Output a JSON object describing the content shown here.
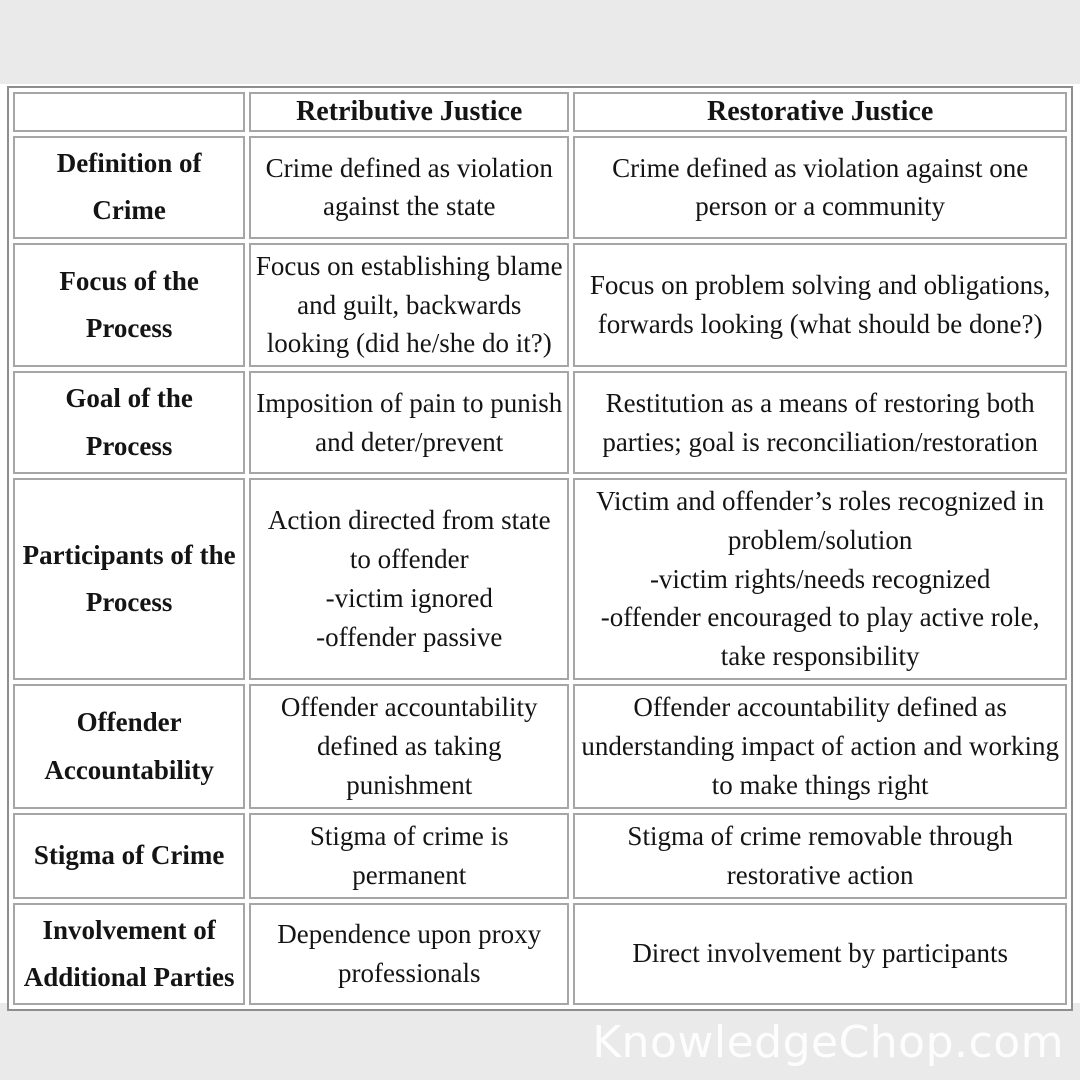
{
  "page": {
    "background_color": "#eaeaea",
    "panel_color": "#ffffff",
    "table_border_color": "#8e8e8e",
    "cell_border_color": "#a6a6a6",
    "text_color": "#141414",
    "watermark": "KnowledgeChop.com",
    "watermark_color": "#ffffff"
  },
  "table": {
    "columns": [
      "",
      "Retributive Justice",
      "Restorative Justice"
    ],
    "rows": [
      {
        "label": "Definition of Crime",
        "retributive": "Crime defined as violation against the state",
        "restorative": "Crime defined as violation against one person or a community"
      },
      {
        "label": "Focus of the Process",
        "retributive": "Focus on establishing blame and guilt, backwards looking (did he/she do it?)",
        "restorative": "Focus on problem solving and obligations, forwards looking (what should be done?)"
      },
      {
        "label": "Goal of the Process",
        "retributive": "Imposition of pain to punish and deter/prevent",
        "restorative": "Restitution as a means of restoring both parties; goal is reconciliation/restoration"
      },
      {
        "label": "Participants of the Process",
        "retributive": "Action directed from state to offender\n-victim ignored\n-offender passive",
        "restorative": "Victim and offender’s roles recognized in problem/solution\n-victim rights/needs recognized\n-offender encouraged to play active role, take responsibility"
      },
      {
        "label": "Offender Accountability",
        "retributive": "Offender accountability defined as taking punishment",
        "restorative": "Offender accountability defined as understanding impact of action and working to make things right"
      },
      {
        "label": "Stigma of Crime",
        "retributive": "Stigma of crime is permanent",
        "restorative": "Stigma of crime removable through restorative action"
      },
      {
        "label": "Involvement of Additional Parties",
        "retributive": "Dependence upon proxy professionals",
        "restorative": "Direct involvement by participants"
      }
    ]
  }
}
